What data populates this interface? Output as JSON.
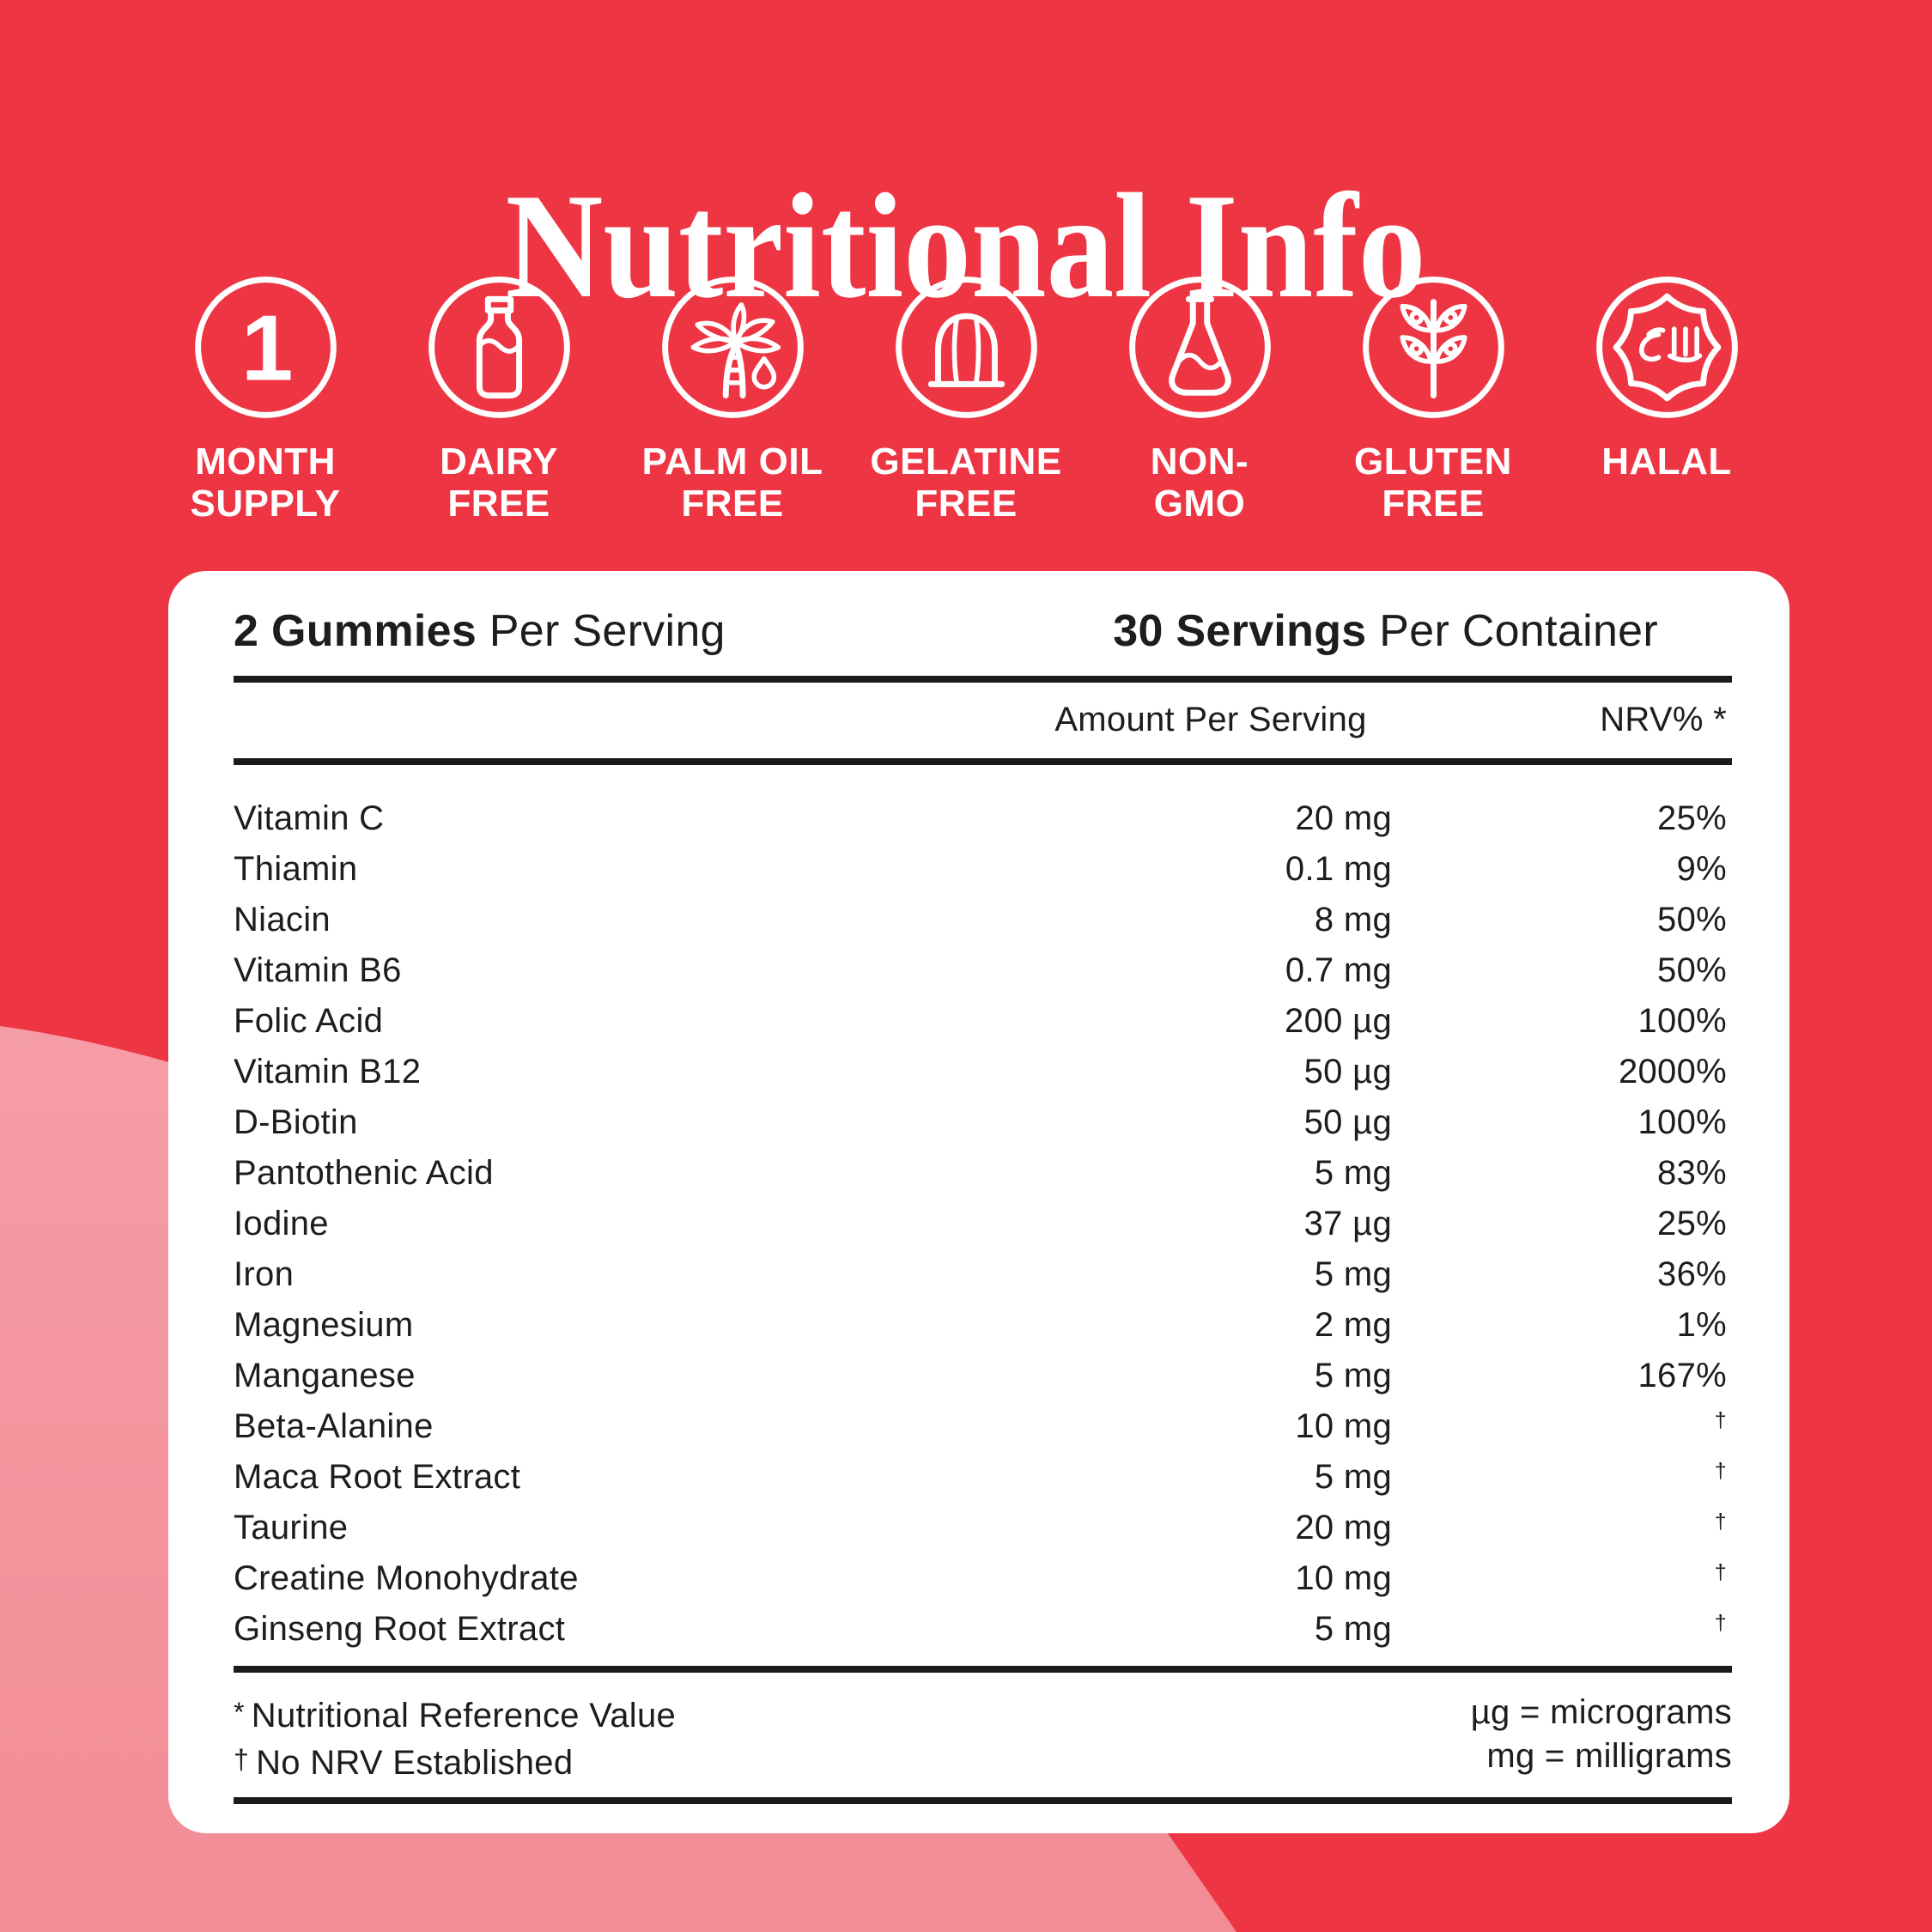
{
  "colors": {
    "background_red": "#EE3544",
    "blob_pink_top": "#F59DA6",
    "blob_pink_bottom": "#F28C95",
    "panel_white": "#FFFFFF",
    "text_dark": "#1D1D1B",
    "text_white": "#FFFFFF"
  },
  "title": "Nutritional Info",
  "badges": [
    {
      "icon": "one-icon",
      "icon_text": "1",
      "lines": [
        "MONTH",
        "SUPPLY"
      ]
    },
    {
      "icon": "bottle-icon",
      "icon_text": "",
      "lines": [
        "DAIRY",
        "FREE"
      ]
    },
    {
      "icon": "palm-icon",
      "icon_text": "",
      "lines": [
        "PALM OIL",
        "FREE"
      ]
    },
    {
      "icon": "jelly-icon",
      "icon_text": "",
      "lines": [
        "GELATINE",
        "FREE"
      ]
    },
    {
      "icon": "flask-icon",
      "icon_text": "",
      "lines": [
        "NON-",
        "GMO"
      ]
    },
    {
      "icon": "wheat-icon",
      "icon_text": "",
      "lines": [
        "GLUTEN",
        "FREE"
      ]
    },
    {
      "icon": "halal-icon",
      "icon_text": "",
      "lines": [
        "HALAL"
      ]
    }
  ],
  "panel": {
    "serving_left_bold": "2 Gummies",
    "serving_left_rest": " Per Serving",
    "serving_right_bold": "30 Servings",
    "serving_right_rest": " Per Container",
    "col_amount": "Amount Per Serving",
    "col_nrv": "NRV% *",
    "rows": [
      {
        "name": "Vitamin C",
        "amount": "20 mg",
        "nrv": "25%"
      },
      {
        "name": "Thiamin",
        "amount": "0.1 mg",
        "nrv": "9%"
      },
      {
        "name": "Niacin",
        "amount": "8 mg",
        "nrv": "50%"
      },
      {
        "name": "Vitamin B6",
        "amount": "0.7 mg",
        "nrv": "50%"
      },
      {
        "name": "Folic Acid",
        "amount": "200 µg",
        "nrv": "100%"
      },
      {
        "name": "Vitamin B12",
        "amount": "50 µg",
        "nrv": "2000%"
      },
      {
        "name": "D-Biotin",
        "amount": "50 µg",
        "nrv": "100%"
      },
      {
        "name": "Pantothenic Acid",
        "amount": "5 mg",
        "nrv": "83%"
      },
      {
        "name": "Iodine",
        "amount": "37 µg",
        "nrv": "25%"
      },
      {
        "name": "Iron",
        "amount": "5 mg",
        "nrv": "36%"
      },
      {
        "name": "Magnesium",
        "amount": "2 mg",
        "nrv": "1%"
      },
      {
        "name": "Manganese",
        "amount": "5 mg",
        "nrv": "167%"
      },
      {
        "name": "Beta-Alanine",
        "amount": "10 mg",
        "nrv": "†"
      },
      {
        "name": "Maca Root Extract",
        "amount": "5 mg",
        "nrv": "†"
      },
      {
        "name": "Taurine",
        "amount": "20 mg",
        "nrv": "†"
      },
      {
        "name": "Creatine Monohydrate",
        "amount": "10 mg",
        "nrv": "†"
      },
      {
        "name": "Ginseng Root Extract",
        "amount": "5 mg",
        "nrv": "†"
      }
    ],
    "footnotes_left": [
      {
        "symbol": "*",
        "text": "Nutritional Reference Value"
      },
      {
        "symbol": "†",
        "text": "No NRV Established"
      }
    ],
    "footnotes_right": [
      {
        "text": "µg = micrograms"
      },
      {
        "text": "mg = milligrams"
      }
    ]
  }
}
